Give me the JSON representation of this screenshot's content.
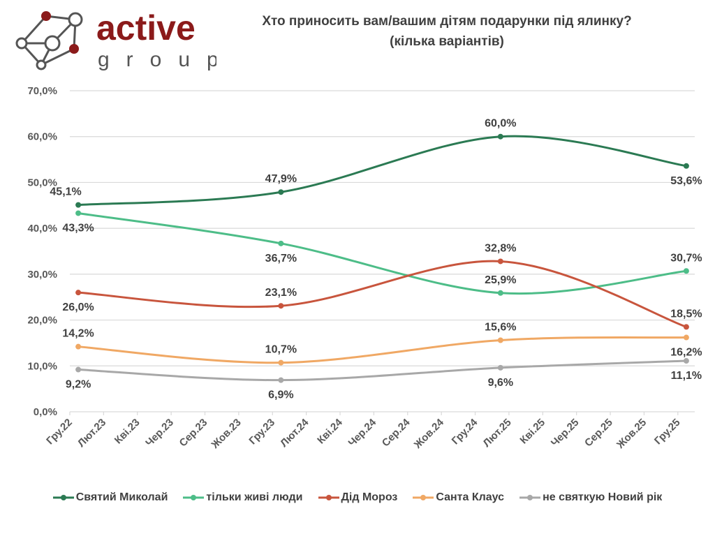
{
  "logo": {
    "word1": "active",
    "word2": "group",
    "color": "#8b1a1a"
  },
  "chart_data": {
    "type": "line",
    "title": "Хто приносить вам/вашим дітям подарунки під ялинку?",
    "subtitle": "(кілька варіантів)",
    "x_tick_labels": [
      "Гру.22",
      "Лют.23",
      "Кві.23",
      "Чер.23",
      "Сер.23",
      "Жов.23",
      "Гру.23",
      "Лют.24",
      "Кві.24",
      "Чер.24",
      "Сер.24",
      "Жов.24",
      "Гру.24",
      "Лют.25",
      "Кві.25",
      "Чер.25",
      "Сер.25",
      "Жов.25",
      "Гру.25"
    ],
    "x": [
      "2022-12",
      "2023-12",
      "2025-01",
      "2025-12"
    ],
    "xlim": [
      "2022-12",
      "2025-12"
    ],
    "y_tick_labels": [
      "0,0%",
      "10,0%",
      "20,0%",
      "30,0%",
      "40,0%",
      "50,0%",
      "60,0%",
      "70,0%"
    ],
    "ylim": [
      0,
      70
    ],
    "grid": "horizontal",
    "smooth": true,
    "legend_position": "bottom",
    "series": [
      {
        "name": "Святий Миколай",
        "color": "#2b7a53",
        "values": [
          45.1,
          47.9,
          60.0,
          53.6
        ],
        "labels": [
          "45,1%",
          "47,9%",
          "60,0%",
          "53,6%"
        ]
      },
      {
        "name": "тільки живі люди",
        "color": "#4dbd88",
        "values": [
          43.3,
          36.7,
          25.9,
          30.7
        ],
        "labels": [
          "43,3%",
          "36,7%",
          "25,9%",
          "30,7%"
        ]
      },
      {
        "name": "Дід Мороз",
        "color": "#c8553d",
        "values": [
          26.0,
          23.1,
          32.8,
          18.5
        ],
        "labels": [
          "26,0%",
          "23,1%",
          "32,8%",
          "18,5%"
        ]
      },
      {
        "name": "Санта Клаус",
        "color": "#f0a864",
        "values": [
          14.2,
          10.7,
          15.6,
          16.2
        ],
        "labels": [
          "14,2%",
          "10,7%",
          "15,6%",
          "16,2%"
        ]
      },
      {
        "name": "не святкую Новий рік",
        "color": "#a8a8a8",
        "values": [
          9.2,
          6.9,
          9.6,
          11.1
        ],
        "labels": [
          "9,2%",
          "6,9%",
          "9,6%",
          "11,1%"
        ]
      }
    ]
  }
}
